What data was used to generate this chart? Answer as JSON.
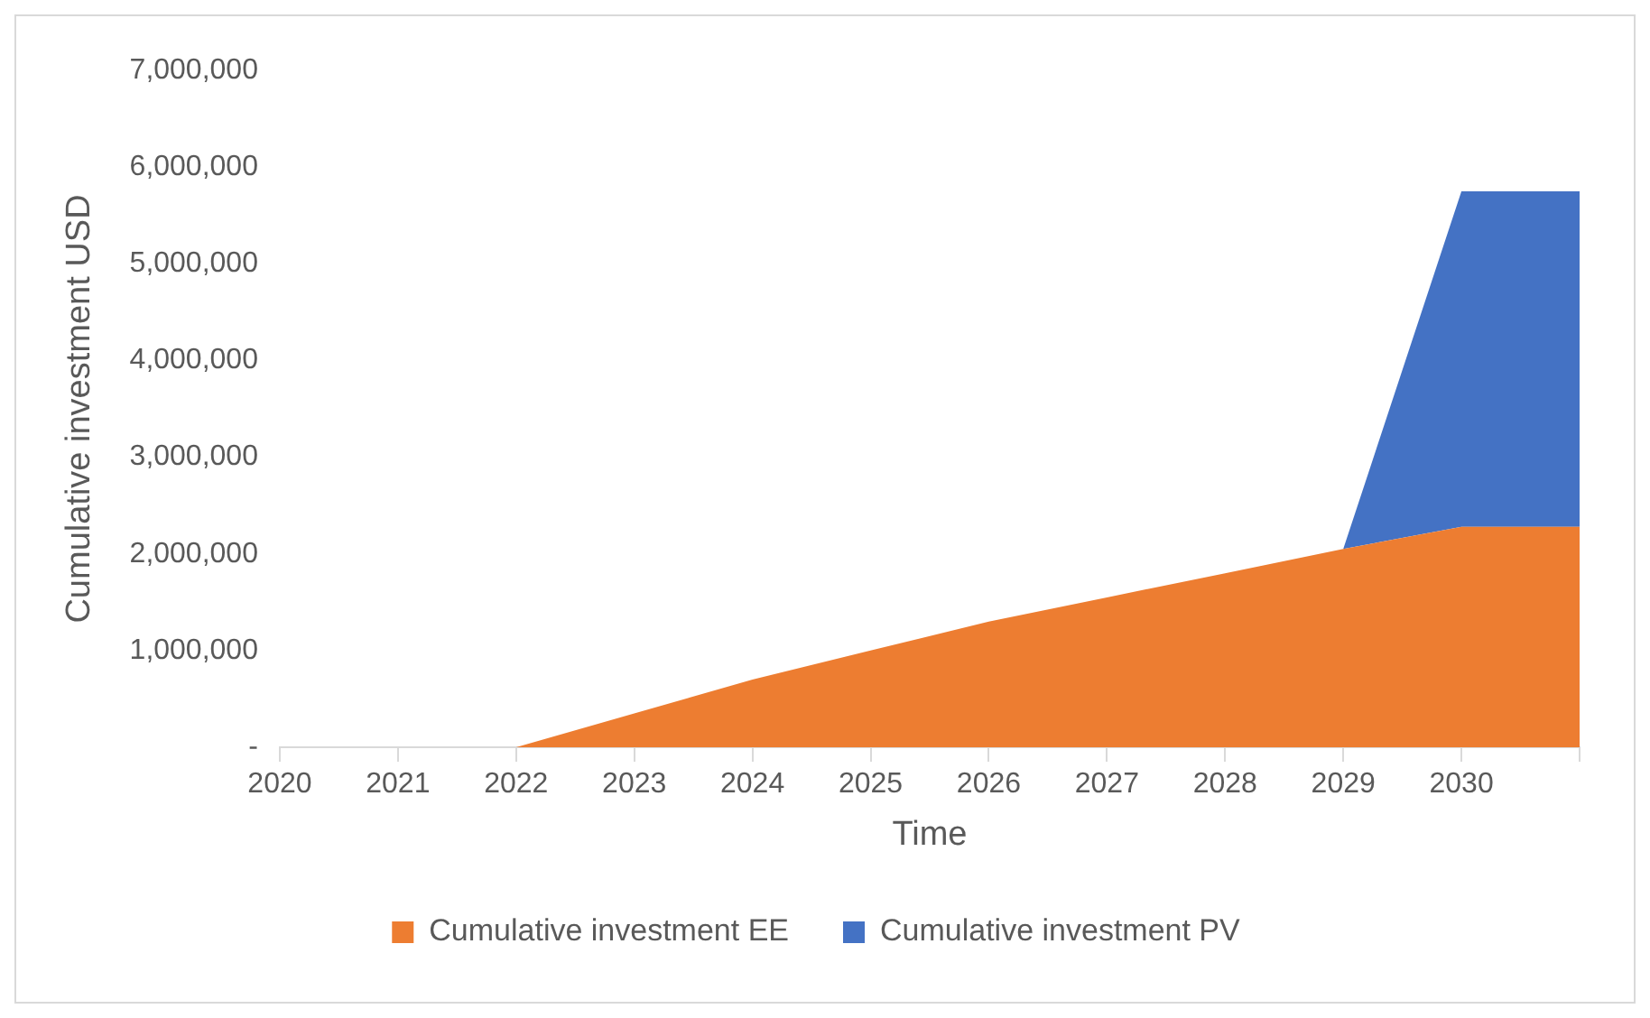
{
  "chart_data": {
    "type": "area",
    "stacked": true,
    "xlabel": "Time",
    "ylabel": "Cumulative investment USD",
    "categories": [
      "2020",
      "2021",
      "2022",
      "2023",
      "2024",
      "2025",
      "2026",
      "2027",
      "2028",
      "2029",
      "2030",
      null
    ],
    "series": [
      {
        "name": "Cumulative investment EE",
        "color": "#ed7d31",
        "values": [
          0,
          0,
          0,
          350000,
          700000,
          1000000,
          1300000,
          1550000,
          1800000,
          2050000,
          2280000,
          2280000
        ]
      },
      {
        "name": "Cumulative investment PV",
        "color": "#4472c4",
        "values": [
          0,
          0,
          0,
          0,
          0,
          0,
          0,
          0,
          0,
          0,
          3470000,
          3470000
        ]
      }
    ],
    "ylim": [
      0,
      7000000
    ],
    "yticks": [
      {
        "value": 0,
        "label": "-"
      },
      {
        "value": 1000000,
        "label": "1,000,000"
      },
      {
        "value": 2000000,
        "label": "2,000,000"
      },
      {
        "value": 3000000,
        "label": "3,000,000"
      },
      {
        "value": 4000000,
        "label": "4,000,000"
      },
      {
        "value": 5000000,
        "label": "5,000,000"
      },
      {
        "value": 6000000,
        "label": "6,000,000"
      },
      {
        "value": 7000000,
        "label": "7,000,000"
      }
    ],
    "grid": false,
    "legend": "bottom"
  }
}
